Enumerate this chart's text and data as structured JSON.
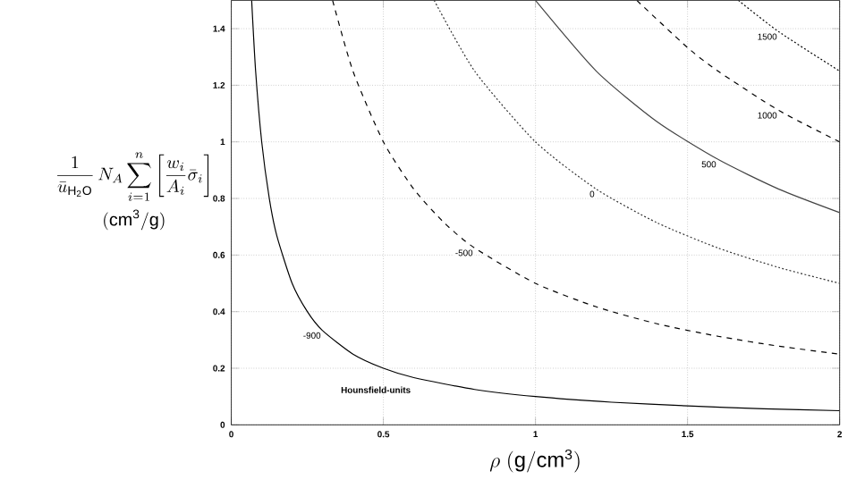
{
  "chart_data": {
    "type": "line",
    "xlabel": "\\rho\\ (\\mathrm{g/cm^3})",
    "ylabel": "\\begin{gathered}\\frac{1}{\\bar{u}_{\\mathrm{H_2O}}}\\,N_A\\sum_{i=1}^{n}\\left[\\frac{w_i}{A_i}\\bar{\\sigma}_i\\right]\\\\ (\\mathrm{cm^3/g})\\end{gathered}",
    "annotations": [
      "Hounsfield-units"
    ],
    "series": [
      {
        "name": "-900",
        "color": "#000000",
        "line_style": "solid",
        "x": [
          0.067,
          0.08,
          0.1,
          0.125,
          0.15,
          0.2,
          0.25,
          0.3,
          0.4,
          0.5,
          0.6,
          0.8,
          1,
          1.25,
          1.5,
          1.75,
          2
        ],
        "values": [
          1.5,
          1.25,
          1,
          0.8,
          0.667,
          0.5,
          0.4,
          0.333,
          0.25,
          0.2,
          0.167,
          0.125,
          0.1,
          0.08,
          0.067,
          0.057,
          0.05
        ]
      },
      {
        "name": "-500",
        "color": "#000000",
        "line_style": "dashed",
        "x": [
          0.333,
          0.4,
          0.5,
          0.6,
          0.7,
          0.8,
          1,
          1.2,
          1.4,
          1.6,
          1.8,
          2
        ],
        "values": [
          1.5,
          1.25,
          1,
          0.833,
          0.714,
          0.625,
          0.5,
          0.417,
          0.357,
          0.313,
          0.278,
          0.25
        ]
      },
      {
        "name": "0",
        "color": "#333333",
        "line_style": "dotted",
        "x": [
          0.667,
          0.8,
          1,
          1.2,
          1.4,
          1.6,
          1.8,
          2
        ],
        "values": [
          1.5,
          1.25,
          1,
          0.833,
          0.714,
          0.625,
          0.556,
          0.5
        ]
      },
      {
        "name": "500",
        "color": "#444444",
        "line_style": "solid",
        "x": [
          1,
          1.2,
          1.4,
          1.6,
          1.8,
          2
        ],
        "values": [
          1.5,
          1.25,
          1.071,
          0.938,
          0.833,
          0.75
        ]
      },
      {
        "name": "1000",
        "color": "#000000",
        "line_style": "dashed",
        "x": [
          1.333,
          1.5,
          1.6,
          1.8,
          2
        ],
        "values": [
          1.5,
          1.333,
          1.25,
          1.111,
          1
        ]
      },
      {
        "name": "1500",
        "color": "#000000",
        "line_style": "dotted",
        "x": [
          1.667,
          1.8,
          2
        ],
        "values": [
          1.5,
          1.389,
          1.25
        ]
      }
    ],
    "xlim": [
      0,
      2
    ],
    "ylim": [
      0,
      1.5
    ],
    "xticks": [
      0,
      0.5,
      1,
      1.5,
      2
    ],
    "yticks": [
      0,
      0.2,
      0.4,
      0.6,
      0.8,
      1,
      1.2,
      1.4
    ],
    "grid": true,
    "marker": "none"
  }
}
